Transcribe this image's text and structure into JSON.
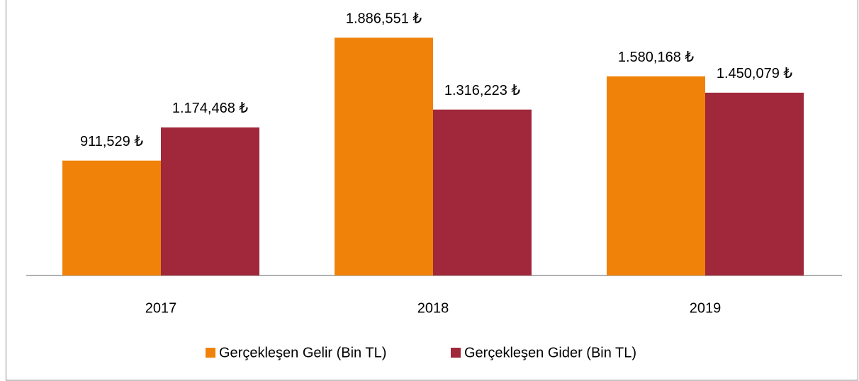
{
  "chart_data": {
    "type": "bar",
    "categories": [
      "2017",
      "2018",
      "2019"
    ],
    "series": [
      {
        "name": "Gerçekleşen Gelir (Bin TL)",
        "color": "#f0820a",
        "values": [
          911.529,
          1886.551,
          1580.168
        ],
        "value_labels": [
          "911,529 ₺",
          "1.886,551 ₺",
          "1.580,168 ₺"
        ]
      },
      {
        "name": "Gerçekleşen Gider (Bin TL)",
        "color": "#a0283a",
        "values": [
          1174.468,
          1316.223,
          1450.079
        ],
        "value_labels": [
          "1.174,468 ₺",
          "1.316,223 ₺",
          "1.450,079 ₺"
        ]
      }
    ],
    "ylim": [
      0,
      2000
    ],
    "legend": "bottom"
  }
}
